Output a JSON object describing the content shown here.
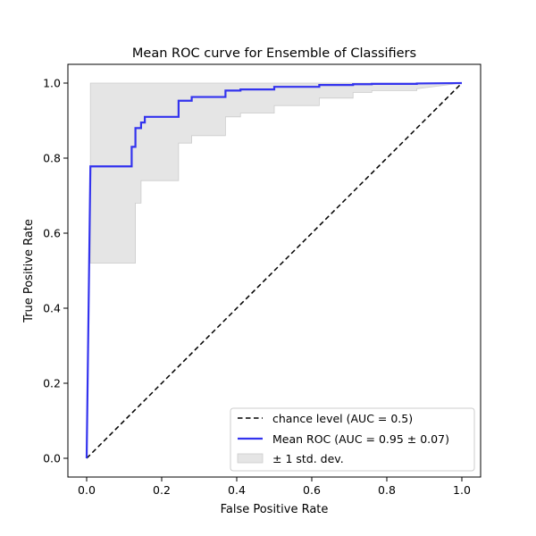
{
  "chart_data": {
    "type": "line",
    "title": "Mean ROC curve for Ensemble of Classifiers",
    "xlabel": "False Positive Rate",
    "ylabel": "True Positive Rate",
    "xlim": [
      -0.05,
      1.05
    ],
    "ylim": [
      -0.05,
      1.05
    ],
    "xticks": [
      0.0,
      0.2,
      0.4,
      0.6,
      0.8,
      1.0
    ],
    "yticks": [
      0.0,
      0.2,
      0.4,
      0.6,
      0.8,
      1.0
    ],
    "tick_labels_x": [
      "0.0",
      "0.2",
      "0.4",
      "0.6",
      "0.8",
      "1.0"
    ],
    "tick_labels_y": [
      "0.0",
      "0.2",
      "0.4",
      "0.6",
      "0.8",
      "1.0"
    ],
    "grid": false,
    "legend_position": "lower-right",
    "legend": [
      {
        "label": "chance level (AUC = 0.5)",
        "style": "dashed-line",
        "color": "#000000"
      },
      {
        "label": "Mean ROC (AUC = 0.95 ± 0.07)",
        "style": "solid-line",
        "color": "#3333ee"
      },
      {
        "label": "± 1 std. dev.",
        "style": "patch",
        "color": "#e5e5e5"
      }
    ],
    "series": [
      {
        "name": "chance level (AUC = 0.5)",
        "color": "#000000",
        "style": "dashed",
        "x": [
          0.0,
          1.0
        ],
        "y": [
          0.0,
          1.0
        ]
      },
      {
        "name": "Mean ROC (AUC = 0.95 ± 0.07)",
        "color": "#3333ee",
        "style": "solid",
        "x": [
          0.0,
          0.01,
          0.01,
          0.12,
          0.12,
          0.13,
          0.13,
          0.145,
          0.145,
          0.155,
          0.155,
          0.245,
          0.245,
          0.28,
          0.28,
          0.37,
          0.37,
          0.41,
          0.41,
          0.5,
          0.5,
          0.62,
          0.62,
          0.71,
          0.71,
          0.76,
          0.76,
          0.88,
          0.88,
          1.0
        ],
        "y": [
          0.0,
          0.778,
          0.778,
          0.778,
          0.83,
          0.83,
          0.88,
          0.88,
          0.895,
          0.895,
          0.91,
          0.91,
          0.953,
          0.953,
          0.963,
          0.963,
          0.98,
          0.98,
          0.983,
          0.983,
          0.99,
          0.99,
          0.995,
          0.995,
          0.997,
          0.997,
          0.998,
          0.998,
          0.999,
          1.0
        ]
      }
    ],
    "band": {
      "name": "± 1 std. dev.",
      "color": "#e5e5e5",
      "x": [
        0.01,
        0.12,
        0.12,
        0.13,
        0.13,
        0.145,
        0.145,
        0.155,
        0.155,
        0.245,
        0.245,
        0.28,
        0.28,
        0.37,
        0.37,
        0.41,
        0.41,
        0.5,
        0.5,
        0.62,
        0.62,
        0.71,
        0.71,
        0.76,
        0.76,
        0.88,
        0.88,
        1.0
      ],
      "upper": [
        1.0,
        1.0,
        1.0,
        1.0,
        1.0,
        1.0,
        1.0,
        1.0,
        1.0,
        1.0,
        1.0,
        1.0,
        1.0,
        1.0,
        1.0,
        1.0,
        1.0,
        1.0,
        1.0,
        1.0,
        1.0,
        1.0,
        1.0,
        1.0,
        1.0,
        1.0,
        1.0,
        1.0
      ],
      "lower": [
        0.52,
        0.52,
        0.52,
        0.52,
        0.68,
        0.68,
        0.74,
        0.74,
        0.74,
        0.74,
        0.84,
        0.84,
        0.86,
        0.86,
        0.91,
        0.91,
        0.92,
        0.92,
        0.94,
        0.94,
        0.96,
        0.96,
        0.975,
        0.975,
        0.98,
        0.98,
        0.985,
        1.0
      ]
    }
  }
}
